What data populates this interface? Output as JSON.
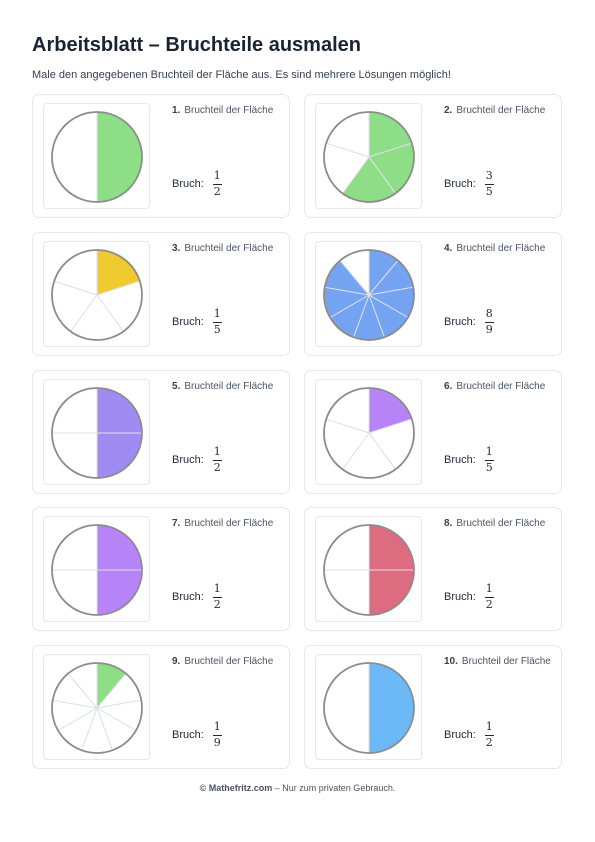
{
  "title": "Arbeitsblatt – Bruchteile ausmalen",
  "intro": "Male den angegebenen Bruchteil der Fläche aus. Es sind mehrere Lösungen möglich!",
  "bruch_label": "Bruch:",
  "items": [
    {
      "num": "1.",
      "label": "Bruchteil der Fläche",
      "numerator": "1",
      "denominator": "2",
      "parts": 2,
      "filled": 1,
      "color": "#8ede88"
    },
    {
      "num": "2.",
      "label": "Bruchteil der Fläche",
      "numerator": "3",
      "denominator": "5",
      "parts": 5,
      "filled": 3,
      "color": "#8ede88"
    },
    {
      "num": "3.",
      "label": "Bruchteil der Fläche",
      "numerator": "1",
      "denominator": "5",
      "parts": 5,
      "filled": 1,
      "color": "#efcb30"
    },
    {
      "num": "4.",
      "label": "Bruchteil der Fläche",
      "numerator": "8",
      "denominator": "9",
      "parts": 9,
      "filled": 8,
      "color": "#74a3f2"
    },
    {
      "num": "5.",
      "label": "Bruchteil der Fläche",
      "numerator": "1",
      "denominator": "2",
      "parts": 4,
      "filled": 2,
      "color": "#a08bf3"
    },
    {
      "num": "6.",
      "label": "Bruchteil der Fläche",
      "numerator": "1",
      "denominator": "5",
      "parts": 5,
      "filled": 1,
      "color": "#b784f7"
    },
    {
      "num": "7.",
      "label": "Bruchteil der Fläche",
      "numerator": "1",
      "denominator": "2",
      "parts": 4,
      "filled": 2,
      "color": "#b784f7"
    },
    {
      "num": "8.",
      "label": "Bruchteil der Fläche",
      "numerator": "1",
      "denominator": "2",
      "parts": 4,
      "filled": 2,
      "color": "#de6c80"
    },
    {
      "num": "9.",
      "label": "Bruchteil der Fläche",
      "numerator": "1",
      "denominator": "9",
      "parts": 9,
      "filled": 1,
      "color": "#8ede88"
    },
    {
      "num": "10.",
      "label": "Bruchteil der Fläche",
      "numerator": "1",
      "denominator": "2",
      "parts": 2,
      "filled": 1,
      "color": "#6db8f6"
    }
  ],
  "footer": {
    "brand": "© Mathefritz.com",
    "text": " – Nur zum privaten Gebrauch."
  }
}
